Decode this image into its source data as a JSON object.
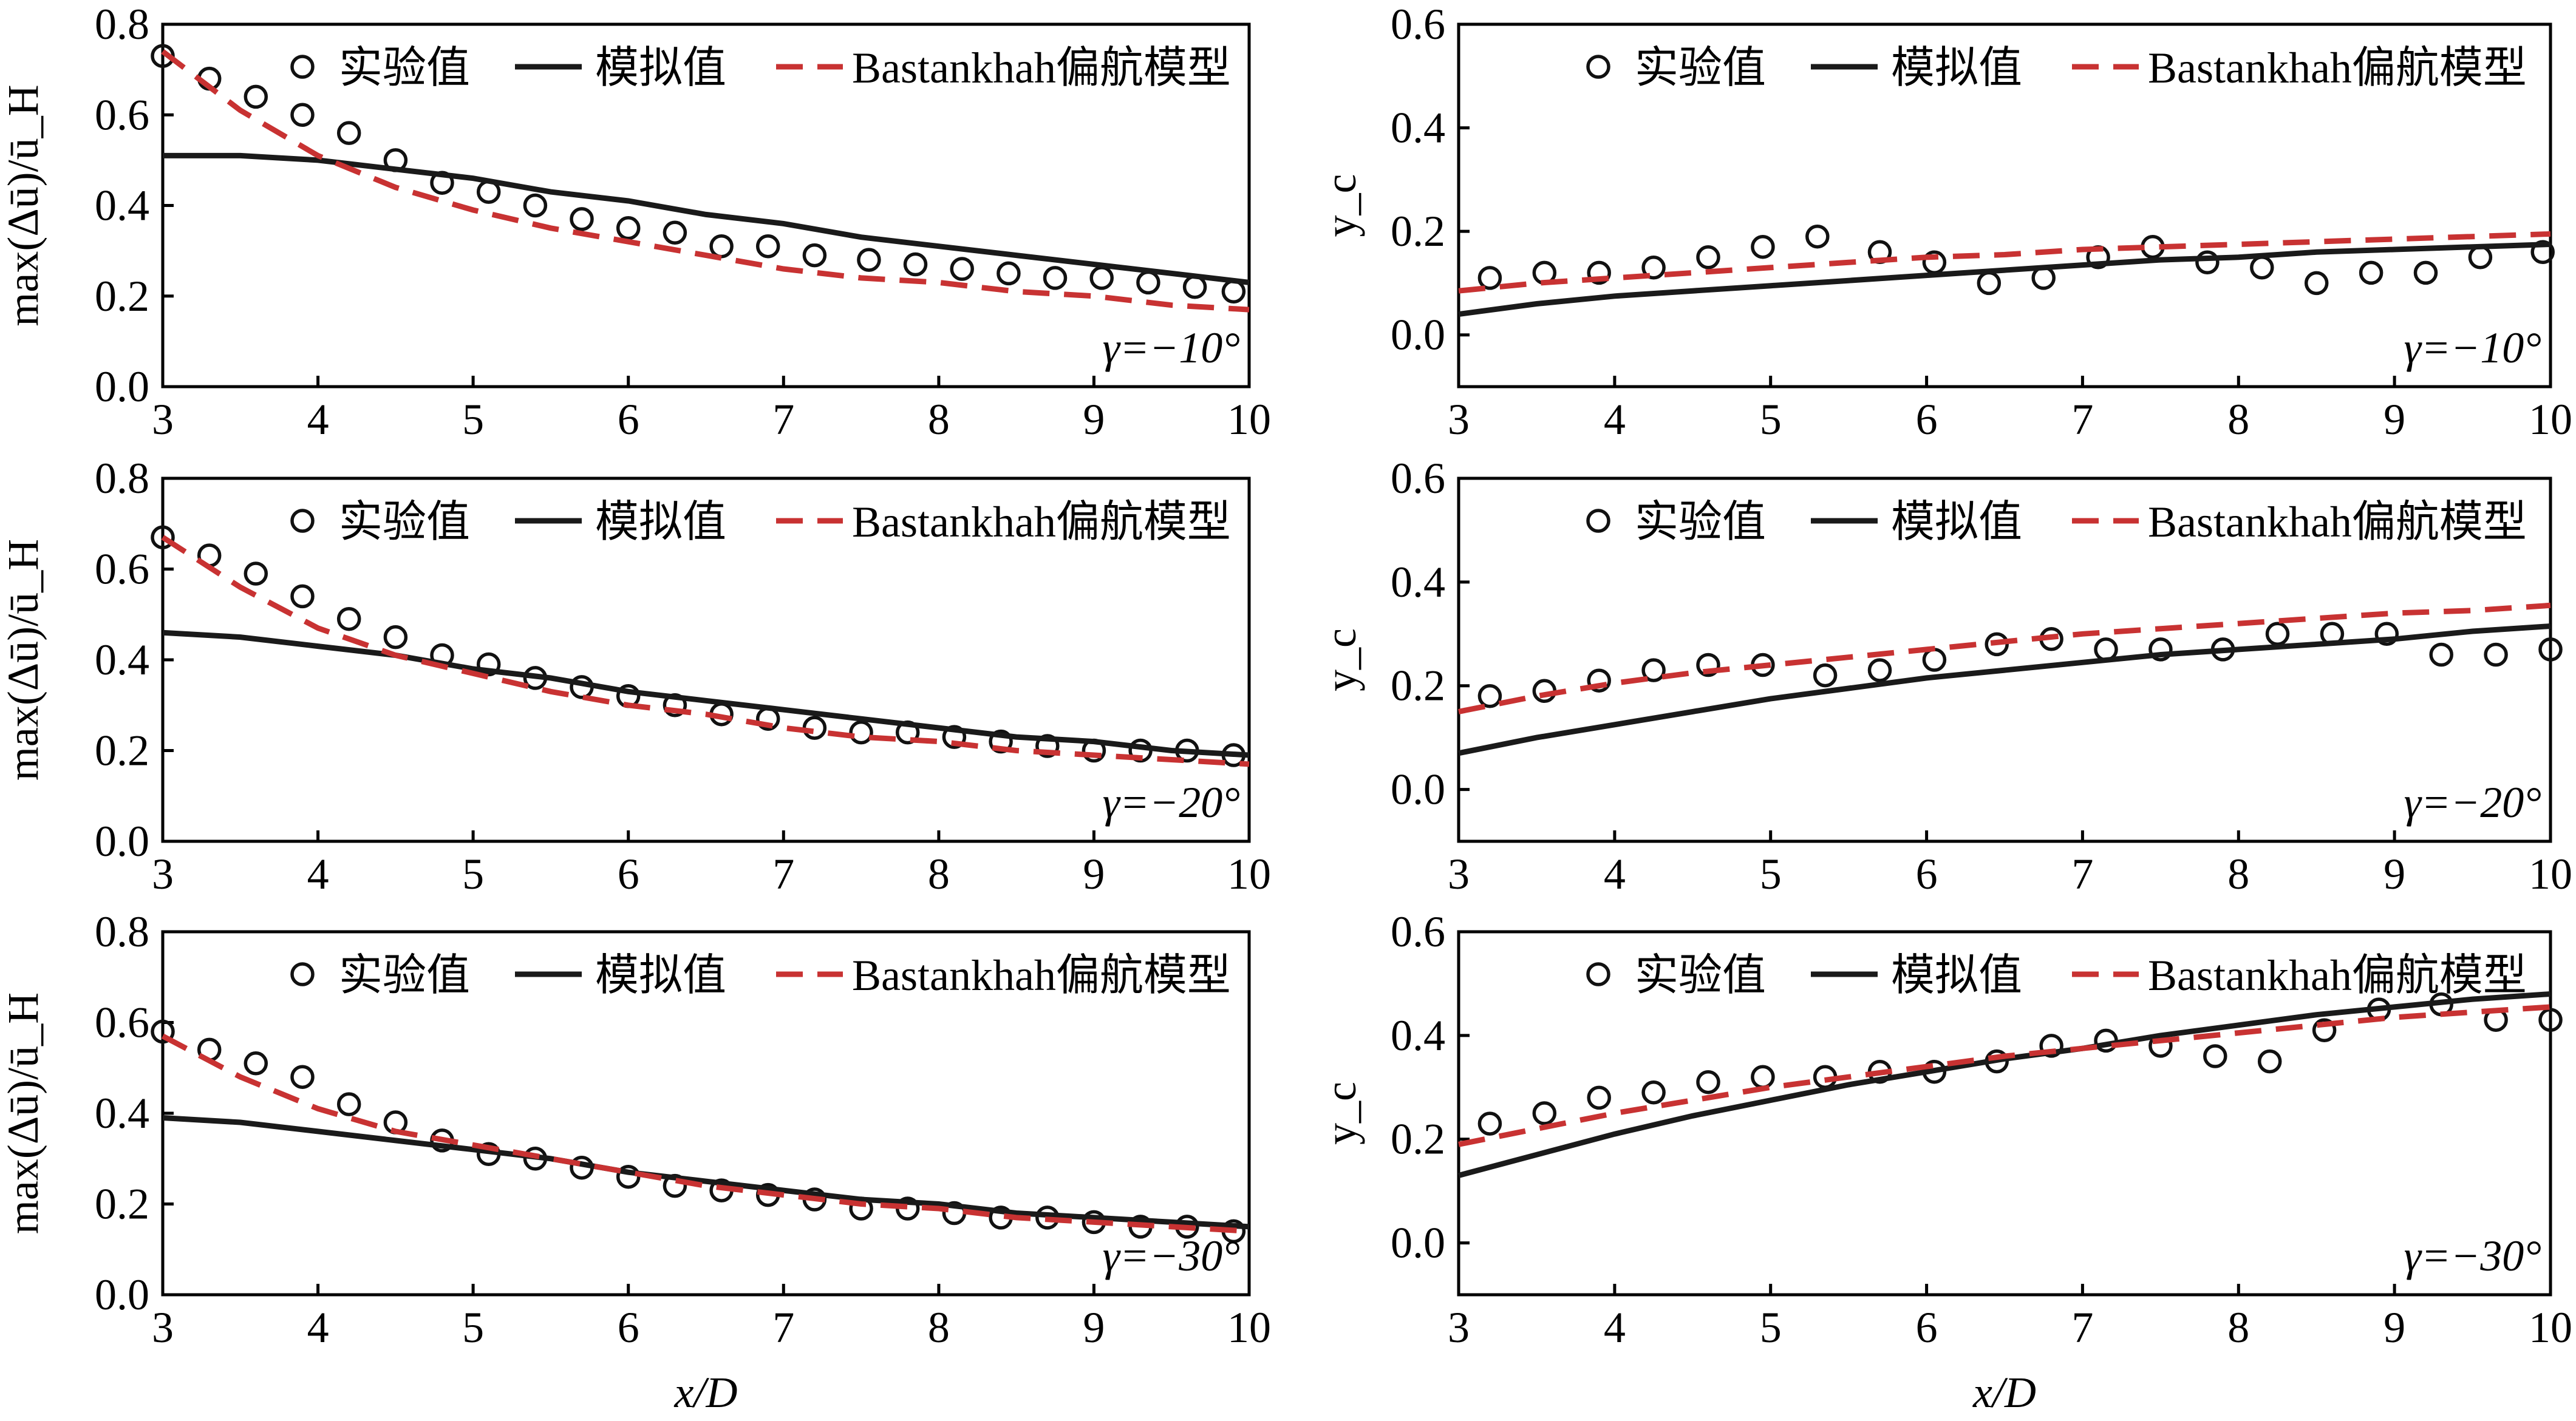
{
  "legend_labels": {
    "experimental": "实验值",
    "simulated": "模拟值",
    "model": "Bastankhah偏航模型"
  },
  "colors": {
    "experimental": "#111111",
    "simulated": "#1a1a1a",
    "model": "#c83232"
  },
  "x_axis_label": "x/D",
  "chart_data": [
    {
      "type": "line",
      "ylabel": "max(Δū)/ū_H",
      "annotation": "γ=−10°",
      "xlim": [
        3,
        10
      ],
      "ylim": [
        0,
        0.8
      ],
      "xticks": [
        3,
        4,
        5,
        6,
        7,
        8,
        9,
        10
      ],
      "xtick_labels": [
        "3",
        "4",
        "5",
        "6",
        "7",
        "8",
        "9",
        "10"
      ],
      "yticks": [
        0,
        0.2,
        0.4,
        0.6,
        0.8
      ],
      "ytick_labels": [
        "0.0",
        "0.2",
        "0.4",
        "0.6",
        "0.8"
      ],
      "series": [
        {
          "name": "实验值",
          "style": "circles",
          "x": [
            3.0,
            3.3,
            3.6,
            3.9,
            4.2,
            4.5,
            4.8,
            5.1,
            5.4,
            5.7,
            6.0,
            6.3,
            6.6,
            6.9,
            7.2,
            7.55,
            7.85,
            8.15,
            8.45,
            8.75,
            9.05,
            9.35,
            9.65,
            9.9
          ],
          "y": [
            0.73,
            0.68,
            0.64,
            0.6,
            0.56,
            0.5,
            0.45,
            0.43,
            0.4,
            0.37,
            0.35,
            0.34,
            0.31,
            0.31,
            0.29,
            0.28,
            0.27,
            0.26,
            0.25,
            0.24,
            0.24,
            0.23,
            0.22,
            0.21
          ]
        },
        {
          "name": "模拟值",
          "style": "solid",
          "x": [
            3,
            3.5,
            4,
            4.5,
            5,
            5.5,
            6,
            6.5,
            7,
            7.5,
            8,
            8.5,
            9,
            9.5,
            10
          ],
          "y": [
            0.51,
            0.51,
            0.5,
            0.48,
            0.46,
            0.43,
            0.41,
            0.38,
            0.36,
            0.33,
            0.31,
            0.29,
            0.27,
            0.25,
            0.23
          ]
        },
        {
          "name": "Bastankhah偏航模型",
          "style": "dashed",
          "x": [
            3,
            3.5,
            4,
            4.5,
            5,
            5.5,
            6,
            6.5,
            7,
            7.5,
            8,
            8.5,
            9,
            9.5,
            10
          ],
          "y": [
            0.74,
            0.61,
            0.51,
            0.44,
            0.39,
            0.35,
            0.32,
            0.29,
            0.26,
            0.24,
            0.23,
            0.21,
            0.2,
            0.18,
            0.17
          ]
        }
      ]
    },
    {
      "type": "line",
      "ylabel": "y_c",
      "annotation": "γ=−10°",
      "xlim": [
        3,
        10
      ],
      "ylim": [
        -0.1,
        0.6
      ],
      "xticks": [
        3,
        4,
        5,
        6,
        7,
        8,
        9,
        10
      ],
      "xtick_labels": [
        "3",
        "4",
        "5",
        "6",
        "7",
        "8",
        "9",
        "10"
      ],
      "yticks": [
        0,
        0.2,
        0.4,
        0.6
      ],
      "ytick_labels": [
        "0.0",
        "0.2",
        "0.4",
        "0.6"
      ],
      "series": [
        {
          "name": "实验值",
          "style": "circles",
          "x": [
            3.2,
            3.55,
            3.9,
            4.25,
            4.6,
            4.95,
            5.3,
            5.7,
            6.05,
            6.4,
            6.75,
            7.1,
            7.45,
            7.8,
            8.15,
            8.5,
            8.85,
            9.2,
            9.55,
            9.95
          ],
          "y": [
            0.11,
            0.12,
            0.12,
            0.13,
            0.15,
            0.17,
            0.19,
            0.16,
            0.14,
            0.1,
            0.11,
            0.15,
            0.17,
            0.14,
            0.13,
            0.1,
            0.12,
            0.12,
            0.15,
            0.16
          ]
        },
        {
          "name": "模拟值",
          "style": "solid",
          "x": [
            3,
            3.5,
            4,
            4.5,
            5,
            5.5,
            6,
            6.5,
            7,
            7.5,
            8,
            8.5,
            9,
            9.5,
            10
          ],
          "y": [
            0.04,
            0.06,
            0.075,
            0.085,
            0.095,
            0.105,
            0.115,
            0.125,
            0.135,
            0.145,
            0.15,
            0.16,
            0.165,
            0.17,
            0.175
          ]
        },
        {
          "name": "Bastankhah偏航模型",
          "style": "dashed",
          "x": [
            3,
            3.5,
            4,
            4.5,
            5,
            5.5,
            6,
            6.5,
            7,
            7.5,
            8,
            8.5,
            9,
            9.5,
            10
          ],
          "y": [
            0.085,
            0.1,
            0.11,
            0.12,
            0.13,
            0.14,
            0.15,
            0.155,
            0.165,
            0.17,
            0.175,
            0.18,
            0.185,
            0.19,
            0.195
          ]
        }
      ]
    },
    {
      "type": "line",
      "ylabel": "max(Δū)/ū_H",
      "annotation": "γ=−20°",
      "xlim": [
        3,
        10
      ],
      "ylim": [
        0,
        0.8
      ],
      "xticks": [
        3,
        4,
        5,
        6,
        7,
        8,
        9,
        10
      ],
      "xtick_labels": [
        "3",
        "4",
        "5",
        "6",
        "7",
        "8",
        "9",
        "10"
      ],
      "yticks": [
        0,
        0.2,
        0.4,
        0.6,
        0.8
      ],
      "ytick_labels": [
        "0.0",
        "0.2",
        "0.4",
        "0.6",
        "0.8"
      ],
      "series": [
        {
          "name": "实验值",
          "style": "circles",
          "x": [
            3.0,
            3.3,
            3.6,
            3.9,
            4.2,
            4.5,
            4.8,
            5.1,
            5.4,
            5.7,
            6.0,
            6.3,
            6.6,
            6.9,
            7.2,
            7.5,
            7.8,
            8.1,
            8.4,
            8.7,
            9.0,
            9.3,
            9.6,
            9.9
          ],
          "y": [
            0.67,
            0.63,
            0.59,
            0.54,
            0.49,
            0.45,
            0.41,
            0.39,
            0.36,
            0.34,
            0.32,
            0.3,
            0.28,
            0.27,
            0.25,
            0.24,
            0.24,
            0.23,
            0.22,
            0.21,
            0.2,
            0.2,
            0.2,
            0.19
          ]
        },
        {
          "name": "模拟值",
          "style": "solid",
          "x": [
            3,
            3.5,
            4,
            4.5,
            5,
            5.5,
            6,
            6.5,
            7,
            7.5,
            8,
            8.5,
            9,
            9.5,
            10
          ],
          "y": [
            0.46,
            0.45,
            0.43,
            0.41,
            0.38,
            0.36,
            0.33,
            0.31,
            0.29,
            0.27,
            0.25,
            0.23,
            0.22,
            0.2,
            0.19
          ]
        },
        {
          "name": "Bastankhah偏航模型",
          "style": "dashed",
          "x": [
            3,
            3.5,
            4,
            4.5,
            5,
            5.5,
            6,
            6.5,
            7,
            7.5,
            8,
            8.5,
            9,
            9.5,
            10
          ],
          "y": [
            0.67,
            0.56,
            0.47,
            0.41,
            0.37,
            0.33,
            0.3,
            0.28,
            0.25,
            0.23,
            0.22,
            0.2,
            0.19,
            0.18,
            0.17
          ]
        }
      ]
    },
    {
      "type": "line",
      "ylabel": "y_c",
      "annotation": "γ=−20°",
      "xlim": [
        3,
        10
      ],
      "ylim": [
        -0.1,
        0.6
      ],
      "xticks": [
        3,
        4,
        5,
        6,
        7,
        8,
        9,
        10
      ],
      "xtick_labels": [
        "3",
        "4",
        "5",
        "6",
        "7",
        "8",
        "9",
        "10"
      ],
      "yticks": [
        0,
        0.2,
        0.4,
        0.6
      ],
      "ytick_labels": [
        "0.0",
        "0.2",
        "0.4",
        "0.6"
      ],
      "series": [
        {
          "name": "实验值",
          "style": "circles",
          "x": [
            3.2,
            3.55,
            3.9,
            4.25,
            4.6,
            4.95,
            5.35,
            5.7,
            6.05,
            6.45,
            6.8,
            7.15,
            7.5,
            7.9,
            8.25,
            8.6,
            8.95,
            9.3,
            9.65,
            10.0
          ],
          "y": [
            0.18,
            0.19,
            0.21,
            0.23,
            0.24,
            0.24,
            0.22,
            0.23,
            0.25,
            0.28,
            0.29,
            0.27,
            0.27,
            0.27,
            0.3,
            0.3,
            0.3,
            0.26,
            0.26,
            0.27
          ]
        },
        {
          "name": "模拟值",
          "style": "solid",
          "x": [
            3,
            3.5,
            4,
            4.5,
            5,
            5.5,
            6,
            6.5,
            7,
            7.5,
            8,
            8.5,
            9,
            9.5,
            10
          ],
          "y": [
            0.07,
            0.1,
            0.125,
            0.15,
            0.175,
            0.195,
            0.215,
            0.23,
            0.245,
            0.26,
            0.27,
            0.28,
            0.29,
            0.305,
            0.315
          ]
        },
        {
          "name": "Bastankhah偏航模型",
          "style": "dashed",
          "x": [
            3,
            3.5,
            4,
            4.5,
            5,
            5.5,
            6,
            6.5,
            7,
            7.5,
            8,
            8.5,
            9,
            9.5,
            10
          ],
          "y": [
            0.15,
            0.18,
            0.205,
            0.225,
            0.24,
            0.255,
            0.27,
            0.285,
            0.3,
            0.31,
            0.32,
            0.33,
            0.34,
            0.345,
            0.355
          ]
        }
      ]
    },
    {
      "type": "line",
      "ylabel": "max(Δū)/ū_H",
      "annotation": "γ=−30°",
      "xlim": [
        3,
        10
      ],
      "ylim": [
        0,
        0.8
      ],
      "xticks": [
        3,
        4,
        5,
        6,
        7,
        8,
        9,
        10
      ],
      "xtick_labels": [
        "3",
        "4",
        "5",
        "6",
        "7",
        "8",
        "9",
        "10"
      ],
      "yticks": [
        0,
        0.2,
        0.4,
        0.6,
        0.8
      ],
      "ytick_labels": [
        "0.0",
        "0.2",
        "0.4",
        "0.6",
        "0.8"
      ],
      "series": [
        {
          "name": "实验值",
          "style": "circles",
          "x": [
            3.0,
            3.3,
            3.6,
            3.9,
            4.2,
            4.5,
            4.8,
            5.1,
            5.4,
            5.7,
            6.0,
            6.3,
            6.6,
            6.9,
            7.2,
            7.5,
            7.8,
            8.1,
            8.4,
            8.7,
            9.0,
            9.3,
            9.6,
            9.9
          ],
          "y": [
            0.58,
            0.54,
            0.51,
            0.48,
            0.42,
            0.38,
            0.34,
            0.31,
            0.3,
            0.28,
            0.26,
            0.24,
            0.23,
            0.22,
            0.21,
            0.19,
            0.19,
            0.18,
            0.17,
            0.17,
            0.16,
            0.15,
            0.15,
            0.14
          ]
        },
        {
          "name": "模拟值",
          "style": "solid",
          "x": [
            3,
            3.5,
            4,
            4.5,
            5,
            5.5,
            6,
            6.5,
            7,
            7.5,
            8,
            8.5,
            9,
            9.5,
            10
          ],
          "y": [
            0.39,
            0.38,
            0.36,
            0.34,
            0.32,
            0.3,
            0.27,
            0.25,
            0.23,
            0.21,
            0.2,
            0.18,
            0.17,
            0.16,
            0.15
          ]
        },
        {
          "name": "Bastankhah偏航模型",
          "style": "dashed",
          "x": [
            3,
            3.5,
            4,
            4.5,
            5,
            5.5,
            6,
            6.5,
            7,
            7.5,
            8,
            8.5,
            9,
            9.5,
            10
          ],
          "y": [
            0.57,
            0.48,
            0.41,
            0.36,
            0.33,
            0.3,
            0.27,
            0.24,
            0.22,
            0.2,
            0.19,
            0.17,
            0.16,
            0.15,
            0.14
          ]
        }
      ]
    },
    {
      "type": "line",
      "ylabel": "y_c",
      "annotation": "γ=−30°",
      "xlim": [
        3,
        10
      ],
      "ylim": [
        -0.1,
        0.6
      ],
      "xticks": [
        3,
        4,
        5,
        6,
        7,
        8,
        9,
        10
      ],
      "xtick_labels": [
        "3",
        "4",
        "5",
        "6",
        "7",
        "8",
        "9",
        "10"
      ],
      "yticks": [
        0,
        0.2,
        0.4,
        0.6
      ],
      "ytick_labels": [
        "0.0",
        "0.2",
        "0.4",
        "0.6"
      ],
      "series": [
        {
          "name": "实验值",
          "style": "circles",
          "x": [
            3.2,
            3.55,
            3.9,
            4.25,
            4.6,
            4.95,
            5.35,
            5.7,
            6.05,
            6.45,
            6.8,
            7.15,
            7.5,
            7.85,
            8.2,
            8.55,
            8.9,
            9.3,
            9.65,
            10.0
          ],
          "y": [
            0.23,
            0.25,
            0.28,
            0.29,
            0.31,
            0.32,
            0.32,
            0.33,
            0.33,
            0.35,
            0.38,
            0.39,
            0.38,
            0.36,
            0.35,
            0.41,
            0.45,
            0.46,
            0.43,
            0.43
          ]
        },
        {
          "name": "模拟值",
          "style": "solid",
          "x": [
            3,
            3.5,
            4,
            4.5,
            5,
            5.5,
            6,
            6.5,
            7,
            7.5,
            8,
            8.5,
            9,
            9.5,
            10
          ],
          "y": [
            0.13,
            0.17,
            0.21,
            0.245,
            0.275,
            0.305,
            0.33,
            0.355,
            0.375,
            0.4,
            0.42,
            0.44,
            0.455,
            0.47,
            0.48
          ]
        },
        {
          "name": "Bastankhah偏航模型",
          "style": "dashed",
          "x": [
            3,
            3.5,
            4,
            4.5,
            5,
            5.5,
            6,
            6.5,
            7,
            7.5,
            8,
            8.5,
            9,
            9.5,
            10
          ],
          "y": [
            0.19,
            0.22,
            0.25,
            0.275,
            0.3,
            0.32,
            0.34,
            0.36,
            0.375,
            0.39,
            0.405,
            0.42,
            0.435,
            0.445,
            0.455
          ]
        }
      ]
    }
  ]
}
